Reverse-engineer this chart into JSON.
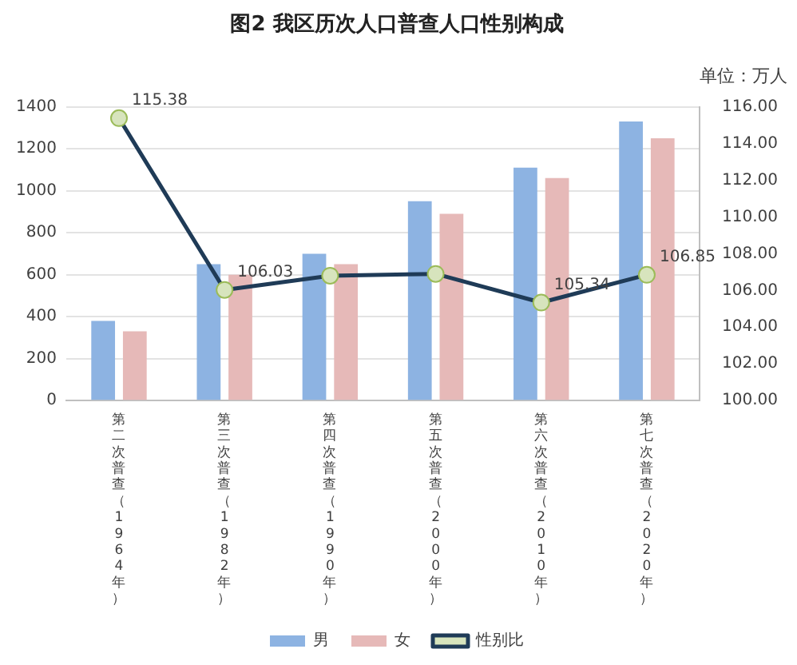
{
  "chart_data": {
    "type": "bar",
    "title": "图2 我区历次人口普查人口性别构成",
    "subtitle": "单位：万人",
    "categories": [
      "第二次普查（1964年）",
      "第三次普查（1982年）",
      "第四次普查（1990年）",
      "第五次普查（2000年）",
      "第六次普查（2010年）",
      "第七次普查（2020年）"
    ],
    "series": [
      {
        "name": "男",
        "color": "#8db3e2",
        "values": [
          380,
          650,
          700,
          950,
          1110,
          1330
        ]
      },
      {
        "name": "女",
        "color": "#e6b9b8",
        "values": [
          330,
          600,
          650,
          890,
          1060,
          1250
        ]
      },
      {
        "name": "性别比",
        "type": "line",
        "axis": "y2",
        "color": "#1f3b57",
        "marker": "circle",
        "values": [
          115.38,
          106.03,
          106.8,
          106.9,
          105.34,
          106.85
        ],
        "value_labels": [
          "115.38",
          "106.03",
          null,
          null,
          "105.34",
          "106.85"
        ]
      }
    ],
    "ylim": [
      0,
      1400
    ],
    "yticks": [
      0,
      200,
      400,
      600,
      800,
      1000,
      1200,
      1400
    ],
    "y2lim": [
      100,
      116
    ],
    "y2ticks": [
      {
        "value": 100,
        "label": "100.00"
      },
      {
        "value": 102,
        "label": "102.00"
      },
      {
        "value": 104,
        "label": "104.00"
      },
      {
        "value": 106,
        "label": "106.00"
      },
      {
        "value": 108,
        "label": "108.00"
      },
      {
        "value": 110,
        "label": "110.00"
      },
      {
        "value": 112,
        "label": "112.00"
      },
      {
        "value": 114,
        "label": "114.00"
      },
      {
        "value": 116,
        "label": "116.00"
      }
    ],
    "grid": "y",
    "legend": "bottom"
  }
}
